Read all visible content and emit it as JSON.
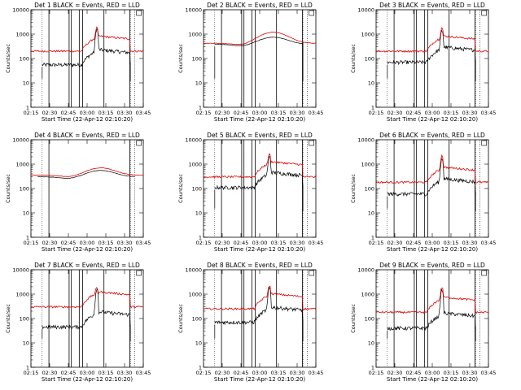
{
  "chart_data": [
    {
      "type": "line",
      "title": "Det 1 BLACK = Events, RED = LLD",
      "xlabel": "Start Time (22-Apr-12 02:10:20)",
      "ylabel": "Counts/sec",
      "y_scale": "log",
      "ylim": [
        1,
        10000
      ],
      "x_ticks": [
        "02:15",
        "02:30",
        "02:45",
        "03:00",
        "03:15",
        "03:30",
        "03:45"
      ],
      "y_ticks": [
        "1",
        "10",
        "100",
        "1000",
        "10000"
      ],
      "red_base": 200,
      "black_base": 55,
      "flare_amp": 1.0,
      "shape": "flare",
      "flare_peak_red": 1800,
      "flare_peak_black": 1600,
      "gaps": true,
      "legend": "top-right"
    },
    {
      "type": "line",
      "title": "Det 2 BLACK = Events, RED = LLD",
      "xlabel": "Start Time (22-Apr-12 02:10:20)",
      "ylabel": "Counts/sec",
      "y_scale": "log",
      "ylim": [
        1,
        10000
      ],
      "x_ticks": [
        "02:15",
        "02:30",
        "02:45",
        "03:00",
        "03:15",
        "03:30",
        "03:45"
      ],
      "y_ticks": [
        "1",
        "10",
        "100",
        "1000",
        "10000"
      ],
      "red_base": 420,
      "black_base": 380,
      "shape": "smooth",
      "flare_peak_red": 1200,
      "flare_peak_black": 750,
      "gaps": true,
      "legend": "top-right"
    },
    {
      "type": "line",
      "title": "Det 3 BLACK = Events, RED = LLD",
      "xlabel": "Start Time (22-Apr-12 02:10:20)",
      "ylabel": "Counts/sec",
      "y_scale": "log",
      "ylim": [
        1,
        10000
      ],
      "x_ticks": [
        "02:15",
        "02:30",
        "02:45",
        "03:00",
        "03:15",
        "03:30",
        "03:45"
      ],
      "y_ticks": [
        "1",
        "10",
        "100",
        "1000",
        "10000"
      ],
      "red_base": 200,
      "black_base": 70,
      "shape": "flare",
      "flare_peak_red": 1800,
      "flare_peak_black": 1400,
      "gaps": true,
      "legend": "top-right"
    },
    {
      "type": "line",
      "title": "Det 4 BLACK = Events, RED = LLD",
      "xlabel": "Start Time (22-Apr-12 02:10:20)",
      "ylabel": "Counts/sec",
      "y_scale": "log",
      "ylim": [
        1,
        10000
      ],
      "x_ticks": [
        "02:15",
        "02:30",
        "02:45",
        "03:00",
        "03:15",
        "03:30",
        "03:45"
      ],
      "y_ticks": [
        "1",
        "10",
        "100",
        "1000",
        "10000"
      ],
      "red_base": 350,
      "black_base": 300,
      "shape": "smooth",
      "flare_peak_red": 700,
      "flare_peak_black": 550,
      "gaps": false,
      "legend": "top-right"
    },
    {
      "type": "line",
      "title": "Det 5 BLACK = Events, RED = LLD",
      "xlabel": "Start Time (22-Apr-12 02:10:20)",
      "ylabel": "Counts/sec",
      "y_scale": "log",
      "ylim": [
        1,
        10000
      ],
      "x_ticks": [
        "02:15",
        "02:30",
        "02:45",
        "03:00",
        "03:15",
        "03:30",
        "03:45"
      ],
      "y_ticks": [
        "1",
        "10",
        "100",
        "1000",
        "10000"
      ],
      "red_base": 300,
      "black_base": 110,
      "shape": "flare",
      "flare_peak_red": 2500,
      "flare_peak_black": 2000,
      "gaps": true,
      "legend": "top-right"
    },
    {
      "type": "line",
      "title": "Det 6 BLACK = Events, RED = LLD",
      "xlabel": "Start Time (22-Apr-12 02:10:20)",
      "ylabel": "Counts/sec",
      "y_scale": "log",
      "ylim": [
        1,
        10000
      ],
      "x_ticks": [
        "02:15",
        "02:30",
        "02:45",
        "03:00",
        "03:15",
        "03:30",
        "03:45"
      ],
      "y_ticks": [
        "1",
        "10",
        "100",
        "1000",
        "10000"
      ],
      "red_base": 180,
      "black_base": 60,
      "shape": "flare",
      "flare_peak_red": 2200,
      "flare_peak_black": 1700,
      "gaps": true,
      "legend": "top-right"
    },
    {
      "type": "line",
      "title": "Det 7 BLACK = Events, RED = LLD",
      "xlabel": "Start Time (22-Apr-12 02:10:20)",
      "ylabel": "Counts/sec",
      "y_scale": "log",
      "ylim": [
        1,
        10000
      ],
      "x_ticks": [
        "02:15",
        "02:30",
        "02:45",
        "03:00",
        "03:15",
        "03:30",
        "03:45"
      ],
      "y_ticks": [
        "1",
        "10",
        "100",
        "1000",
        "10000"
      ],
      "red_base": 300,
      "black_base": 45,
      "shape": "flare",
      "flare_peak_red": 1800,
      "flare_peak_black": 1600,
      "gaps": true,
      "legend": "top-right"
    },
    {
      "type": "line",
      "title": "Det 8 BLACK = Events, RED = LLD",
      "xlabel": "Start Time (22-Apr-12 02:10:20)",
      "ylabel": "Counts/sec",
      "y_scale": "log",
      "ylim": [
        1,
        10000
      ],
      "x_ticks": [
        "02:15",
        "02:30",
        "02:45",
        "03:00",
        "03:15",
        "03:30",
        "03:45"
      ],
      "y_ticks": [
        "1",
        "10",
        "100",
        "1000",
        "10000"
      ],
      "red_base": 250,
      "black_base": 70,
      "shape": "flare",
      "flare_peak_red": 2200,
      "flare_peak_black": 1800,
      "gaps": true,
      "legend": "top-right"
    },
    {
      "type": "line",
      "title": "Det 9 BLACK = Events, RED = LLD",
      "xlabel": "Start Time (22-Apr-12 02:10:20)",
      "ylabel": "Counts/sec",
      "y_scale": "log",
      "ylim": [
        1,
        10000
      ],
      "x_ticks": [
        "02:15",
        "02:30",
        "02:45",
        "03:00",
        "03:15",
        "03:30",
        "03:45"
      ],
      "y_ticks": [
        "1",
        "10",
        "100",
        "1000",
        "10000"
      ],
      "red_base": 180,
      "black_base": 40,
      "shape": "flare",
      "flare_peak_red": 1900,
      "flare_peak_black": 1500,
      "gaps": true,
      "legend": "top-right"
    }
  ]
}
